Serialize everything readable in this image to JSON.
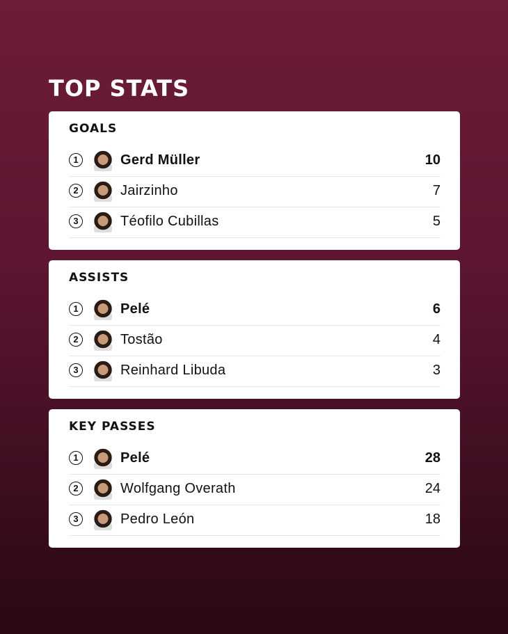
{
  "title": "TOP STATS",
  "sections": [
    {
      "heading": "GOALS",
      "rows": [
        {
          "rank": "1",
          "name": "Gerd Müller",
          "value": "10"
        },
        {
          "rank": "2",
          "name": "Jairzinho",
          "value": "7"
        },
        {
          "rank": "3",
          "name": "Téofilo Cubillas",
          "value": "5"
        }
      ]
    },
    {
      "heading": "ASSISTS",
      "rows": [
        {
          "rank": "1",
          "name": "Pelé",
          "value": "6"
        },
        {
          "rank": "2",
          "name": "Tostão",
          "value": "4"
        },
        {
          "rank": "3",
          "name": "Reinhard Libuda",
          "value": "3"
        }
      ]
    },
    {
      "heading": "KEY PASSES",
      "rows": [
        {
          "rank": "1",
          "name": "Pelé",
          "value": "28"
        },
        {
          "rank": "2",
          "name": "Wolfgang Overath",
          "value": "24"
        },
        {
          "rank": "3",
          "name": "Pedro León",
          "value": "18"
        }
      ]
    }
  ]
}
